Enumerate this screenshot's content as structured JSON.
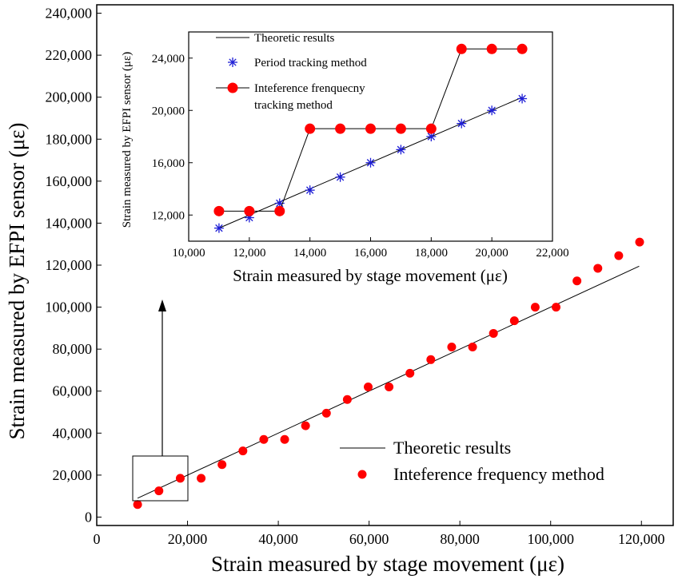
{
  "chart_data": [
    {
      "type": "scatter",
      "xlabel": "Strain measured by stage movement (με)",
      "ylabel": "Strain measured by EFPI sensor (με)",
      "xlim": [
        0,
        127000
      ],
      "ylim": [
        -4000,
        244000
      ],
      "xticks": [
        "0",
        "20,000",
        "40,000",
        "60,000",
        "80,000",
        "100,000",
        "120,000"
      ],
      "yticks": [
        "0",
        "20,000",
        "40,000",
        "60,000",
        "80,000",
        "100,000",
        "120,000",
        "140,000",
        "160,000",
        "180,000",
        "200,000",
        "220,000",
        "240,000"
      ],
      "legend_position": "bottom-right",
      "series": [
        {
          "name": "Theoretic results",
          "kind": "line",
          "color": "#000000",
          "x": [
            9000,
            119500
          ],
          "y": [
            9000,
            119500
          ]
        },
        {
          "name": "Inteference frequency method",
          "kind": "points",
          "color": "#ff0000",
          "x": [
            9000,
            13700,
            18400,
            23000,
            27600,
            32200,
            36800,
            41400,
            46000,
            50600,
            55200,
            59800,
            64400,
            69000,
            73600,
            78200,
            82800,
            87400,
            92000,
            96600,
            101200,
            105800,
            110400,
            115000,
            119600
          ],
          "y": [
            6000,
            12500,
            18500,
            18500,
            25000,
            31500,
            37000,
            37000,
            43500,
            49500,
            56000,
            62000,
            62000,
            68500,
            75000,
            81000,
            81000,
            87500,
            93500,
            100000,
            100000,
            112500,
            118500,
            124500,
            131000
          ]
        }
      ]
    },
    {
      "type": "scatter",
      "xlabel": "Strain measured by stage movement (με)",
      "ylabel": "Strain  measured by EFPI sensor (με)",
      "xlim": [
        10000,
        22000
      ],
      "ylim": [
        10000,
        26000
      ],
      "xticks": [
        "10,000",
        "12,000",
        "14,000",
        "16,000",
        "18,000",
        "20,000",
        "22,000"
      ],
      "yticks": [
        "12,000",
        "16,000",
        "20,000",
        "24,000"
      ],
      "legend_position": "top-left",
      "series": [
        {
          "name": "Theoretic results",
          "kind": "line",
          "color": "#000000",
          "x": [
            11000,
            21000
          ],
          "y": [
            11000,
            21000
          ]
        },
        {
          "name": "Period tracking method",
          "kind": "star",
          "color": "#1f1fd6",
          "x": [
            11000,
            12000,
            13000,
            14000,
            15000,
            16000,
            17000,
            18000,
            19000,
            20000,
            21000
          ],
          "y": [
            11000,
            11800,
            12900,
            13900,
            14900,
            16000,
            17000,
            18000,
            19000,
            20000,
            20900
          ]
        },
        {
          "name": "Inteference frenquecny\ntracking method",
          "kind": "circle-line",
          "color": "#ff0000",
          "x": [
            11000,
            12000,
            13000,
            14000,
            15000,
            16000,
            17000,
            18000,
            19000,
            20000,
            21000
          ],
          "y": [
            12300,
            12300,
            12300,
            18600,
            18600,
            18600,
            18600,
            18600,
            24700,
            24700,
            24700
          ]
        }
      ]
    }
  ],
  "legend": {
    "main": [
      "Theoretic results",
      "Inteference frequency method"
    ],
    "inset": [
      "Theoretic results",
      "Period tracking method",
      "Inteference frenquecny",
      "tracking method"
    ]
  }
}
